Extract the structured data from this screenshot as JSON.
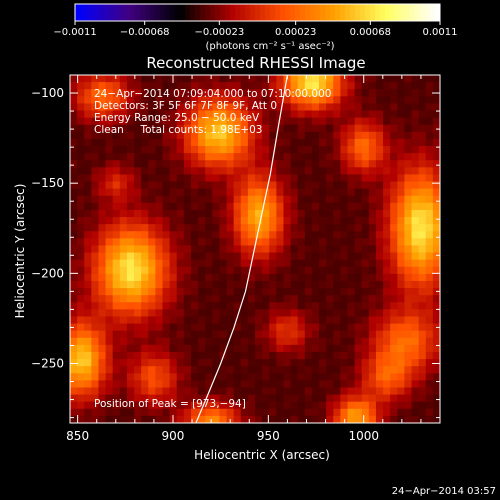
{
  "chart_data": {
    "type": "heatmap",
    "title": "Reconstructed RHESSI Image",
    "xlabel": "Heliocentric X (arcsec)",
    "ylabel": "Heliocentric Y (arcsec)",
    "xlim": [
      846,
      1040
    ],
    "ylim": [
      -283,
      -90
    ],
    "xticks": [
      850,
      900,
      950,
      1000
    ],
    "yticks": [
      -100,
      -150,
      -200,
      -250
    ],
    "x_tick_labels": [
      "850",
      "900",
      "950",
      "1000"
    ],
    "y_tick_labels": [
      "−100",
      "−150",
      "−200",
      "−250"
    ],
    "colorbar": {
      "min": -0.0011,
      "max": 0.0011,
      "tick_values": [
        -0.0011,
        -0.00068,
        -0.00023,
        0.00023,
        0.00068,
        0.0011
      ],
      "tick_labels": [
        "−0.0011",
        "−0.00068",
        "−0.00023",
        "0.00023",
        "0.00068",
        "0.0011"
      ],
      "colors": [
        "#0000ff",
        "#400080",
        "#000000",
        "#b00000",
        "#ff5000",
        "#ffa000",
        "#ffff60",
        "#ffffff"
      ],
      "unit_label": "(photons cm⁻² s⁻¹ asec⁻²)"
    },
    "info_lines": [
      "24−Apr−2014 07:09:04.000 to 07:10:00.000",
      "Detectors: 3F 5F 6F 7F 8F 9F, Att 0",
      "Energy Range: 25.0 − 50.0 keV",
      "Clean     Total counts: 1.98E+03"
    ],
    "peak_label": "Position of Peak = [973,−94]",
    "peak_position": [
      973,
      -94
    ],
    "limb_curve": [
      [
        912,
        -283
      ],
      [
        918,
        -268
      ],
      [
        925,
        -250
      ],
      [
        932,
        -230
      ],
      [
        938,
        -210
      ],
      [
        943,
        -185
      ],
      [
        947,
        -165
      ],
      [
        951,
        -145
      ],
      [
        955,
        -120
      ],
      [
        958,
        -102
      ],
      [
        960,
        -90
      ]
    ],
    "sources": [
      {
        "x": 878,
        "y": -198,
        "sx": 13,
        "sy": 17,
        "amp": 1.0
      },
      {
        "x": 852,
        "y": -248,
        "sx": 9,
        "sy": 14,
        "amp": 0.9
      },
      {
        "x": 863,
        "y": -102,
        "sx": 10,
        "sy": 9,
        "amp": 0.55
      },
      {
        "x": 870,
        "y": -150,
        "sx": 7,
        "sy": 7,
        "amp": 0.3
      },
      {
        "x": 890,
        "y": -258,
        "sx": 9,
        "sy": 10,
        "amp": 0.45
      },
      {
        "x": 924,
        "y": -122,
        "sx": 12,
        "sy": 13,
        "amp": 0.9
      },
      {
        "x": 945,
        "y": -168,
        "sx": 9,
        "sy": 15,
        "amp": 0.8
      },
      {
        "x": 973,
        "y": -94,
        "sx": 11,
        "sy": 10,
        "amp": 1.0
      },
      {
        "x": 1000,
        "y": -130,
        "sx": 8,
        "sy": 10,
        "amp": 0.55
      },
      {
        "x": 1030,
        "y": -175,
        "sx": 11,
        "sy": 22,
        "amp": 1.0
      },
      {
        "x": 1022,
        "y": -238,
        "sx": 12,
        "sy": 12,
        "amp": 0.55
      },
      {
        "x": 1012,
        "y": -258,
        "sx": 9,
        "sy": 9,
        "amp": 0.45
      },
      {
        "x": 920,
        "y": -282,
        "sx": 10,
        "sy": 7,
        "amp": 0.65
      },
      {
        "x": 996,
        "y": -280,
        "sx": 8,
        "sy": 8,
        "amp": 0.75
      },
      {
        "x": 960,
        "y": -232,
        "sx": 8,
        "sy": 8,
        "amp": 0.35
      }
    ]
  },
  "footer": {
    "timestamp": "24−Apr−2014 03:57"
  }
}
